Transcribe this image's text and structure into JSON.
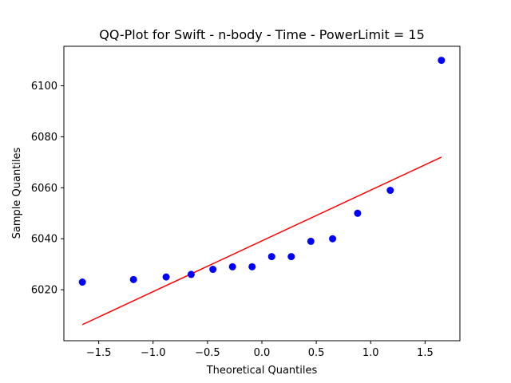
{
  "chart_data": {
    "type": "scatter",
    "title": "QQ-Plot for Swift - n-body - Time - PowerLimit = 15",
    "xlabel": "Theoretical Quantiles",
    "ylabel": "Sample Quantiles",
    "xlim": [
      -1.82,
      1.82
    ],
    "ylim": [
      6000.0,
      6115.5
    ],
    "xticks": [
      -1.5,
      -1.0,
      -0.5,
      0.0,
      0.5,
      1.0,
      1.5
    ],
    "xtick_labels": [
      "−1.5",
      "−1.0",
      "−0.5",
      "0.0",
      "0.5",
      "1.0",
      "1.5"
    ],
    "yticks": [
      6020,
      6040,
      6060,
      6080,
      6100
    ],
    "ytick_labels": [
      "6020",
      "6040",
      "6060",
      "6080",
      "6100"
    ],
    "grid": false,
    "points": {
      "color": "#0000ff",
      "x": [
        -1.65,
        -1.18,
        -0.88,
        -0.65,
        -0.45,
        -0.27,
        -0.09,
        0.09,
        0.27,
        0.45,
        0.65,
        0.88,
        1.18,
        1.65
      ],
      "y": [
        6023,
        6024,
        6025,
        6026,
        6028,
        6029,
        6029,
        6033,
        6033,
        6039,
        6040,
        6050,
        6059,
        6110
      ]
    },
    "fit_line": {
      "color": "#ff0000",
      "x": [
        -1.65,
        1.65
      ],
      "y": [
        6006.3,
        6072.0
      ]
    }
  }
}
